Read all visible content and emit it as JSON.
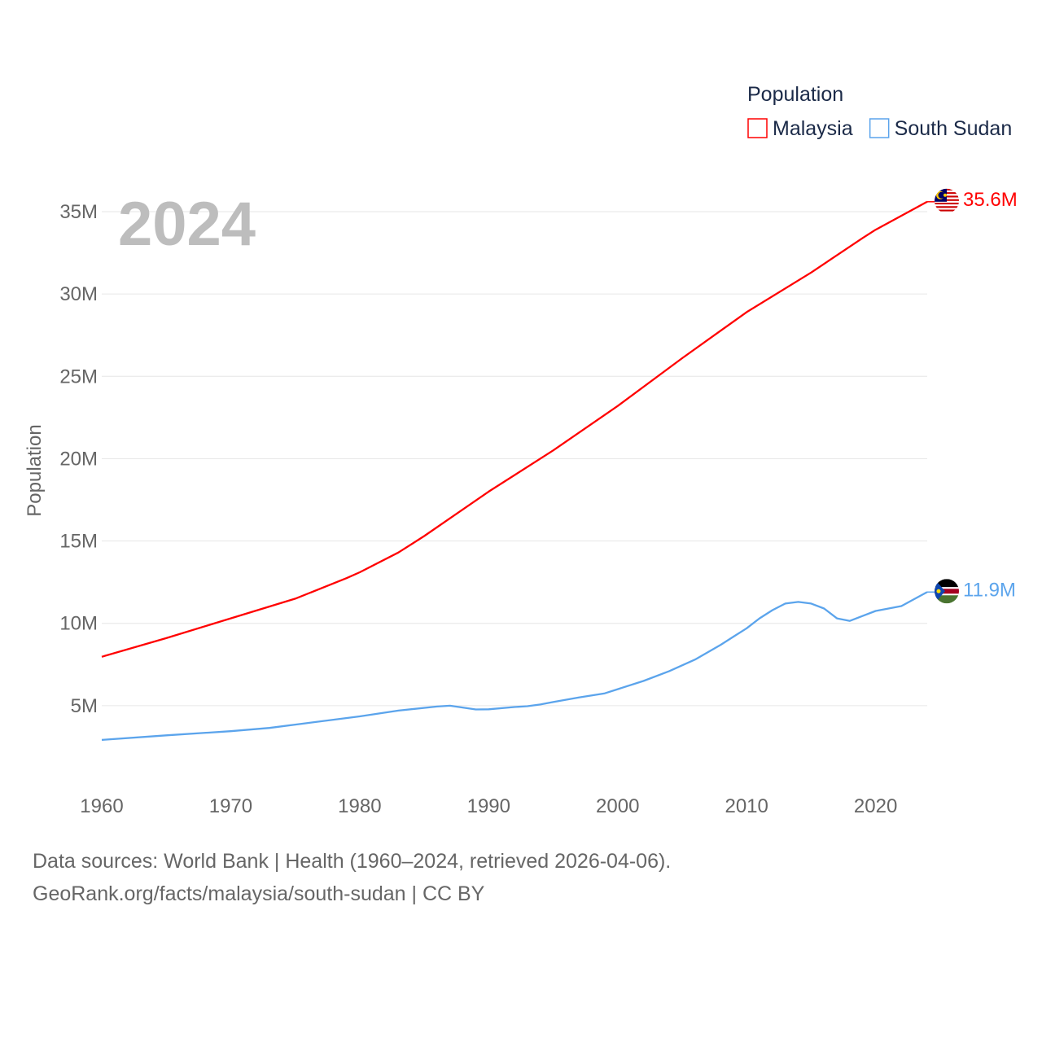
{
  "chart_data": {
    "type": "line",
    "title_year": "2024",
    "ylabel": "Population",
    "legend_title": "Population",
    "legend_position": "top-right",
    "xlim": [
      1960,
      2024
    ],
    "ylim": [
      0,
      37
    ],
    "x_ticks": [
      "1960",
      "1970",
      "1980",
      "1990",
      "2000",
      "2010",
      "2020"
    ],
    "y_ticks": [
      {
        "v": 5,
        "label": "5M"
      },
      {
        "v": 10,
        "label": "10M"
      },
      {
        "v": 15,
        "label": "15M"
      },
      {
        "v": 20,
        "label": "20M"
      },
      {
        "v": 25,
        "label": "25M"
      },
      {
        "v": 30,
        "label": "30M"
      },
      {
        "v": 35,
        "label": "35M"
      }
    ],
    "grid": true,
    "series": [
      {
        "name": "Malaysia",
        "color": "#ff0000",
        "end_label": "35.6M",
        "flag": "malaysia-flag",
        "points": [
          [
            1960,
            7.97
          ],
          [
            1965,
            9.1
          ],
          [
            1970,
            10.3
          ],
          [
            1975,
            11.5
          ],
          [
            1979,
            12.75
          ],
          [
            1980,
            13.1
          ],
          [
            1983,
            14.3
          ],
          [
            1985,
            15.3
          ],
          [
            1990,
            18.0
          ],
          [
            1995,
            20.5
          ],
          [
            2000,
            23.2
          ],
          [
            2005,
            26.1
          ],
          [
            2010,
            28.9
          ],
          [
            2015,
            31.3
          ],
          [
            2019,
            33.4
          ],
          [
            2020,
            33.9
          ],
          [
            2024,
            35.6
          ]
        ]
      },
      {
        "name": "South Sudan",
        "color": "#5ba4ec",
        "end_label": "11.9M",
        "flag": "south-sudan-flag",
        "points": [
          [
            1960,
            2.92
          ],
          [
            1965,
            3.2
          ],
          [
            1970,
            3.45
          ],
          [
            1973,
            3.65
          ],
          [
            1975,
            3.85
          ],
          [
            1980,
            4.35
          ],
          [
            1983,
            4.7
          ],
          [
            1986,
            4.95
          ],
          [
            1987,
            5.0
          ],
          [
            1989,
            4.77
          ],
          [
            1990,
            4.78
          ],
          [
            1992,
            4.92
          ],
          [
            1993,
            4.97
          ],
          [
            1994,
            5.07
          ],
          [
            1995,
            5.22
          ],
          [
            1997,
            5.5
          ],
          [
            1999,
            5.75
          ],
          [
            2000,
            6.0
          ],
          [
            2002,
            6.5
          ],
          [
            2004,
            7.1
          ],
          [
            2006,
            7.8
          ],
          [
            2008,
            8.7
          ],
          [
            2009,
            9.2
          ],
          [
            2010,
            9.7
          ],
          [
            2011,
            10.3
          ],
          [
            2012,
            10.8
          ],
          [
            2013,
            11.2
          ],
          [
            2014,
            11.3
          ],
          [
            2015,
            11.2
          ],
          [
            2016,
            10.9
          ],
          [
            2017,
            10.3
          ],
          [
            2018,
            10.15
          ],
          [
            2019,
            10.45
          ],
          [
            2020,
            10.75
          ],
          [
            2021,
            10.9
          ],
          [
            2022,
            11.05
          ],
          [
            2024,
            11.9
          ]
        ]
      }
    ]
  },
  "footer": {
    "line1": "Data sources: World Bank | Health (1960–2024, retrieved 2026-04-06).",
    "line2": "GeoRank.org/facts/malaysia/south-sudan | CC BY"
  }
}
